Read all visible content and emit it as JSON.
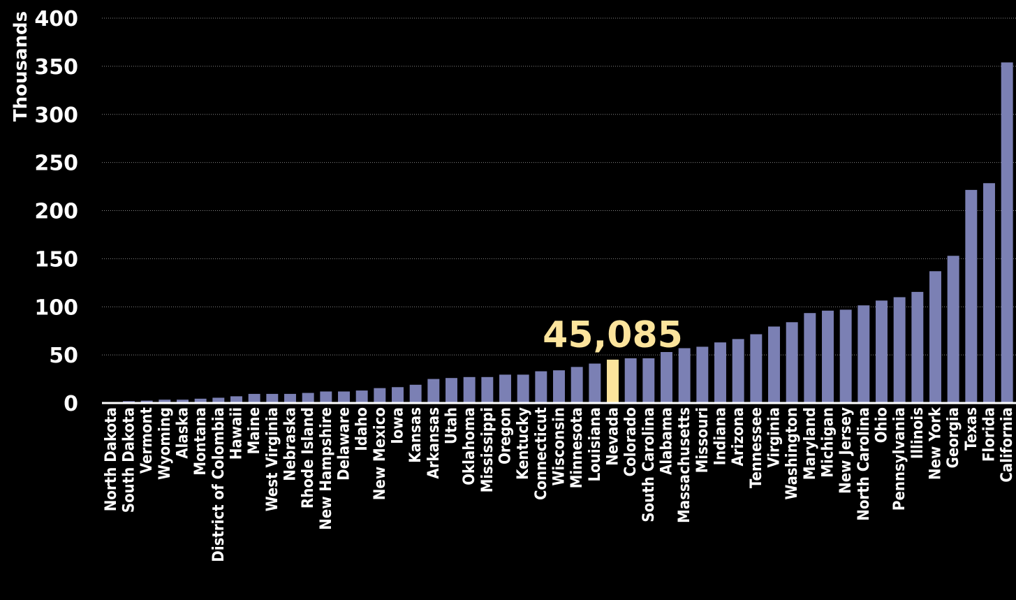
{
  "colors": {
    "background": "#000000",
    "bar": "#7b80b4",
    "highlight": "#fce49c",
    "text": "#ffffff",
    "grid": "#888888"
  },
  "chart_data": {
    "type": "bar",
    "ylabel": "Thousands",
    "ylim": [
      0,
      400
    ],
    "yticks": [
      0,
      50,
      100,
      150,
      200,
      250,
      300,
      350,
      400
    ],
    "grid": "horizontal dotted",
    "highlight": {
      "category": "Nevada",
      "value": 45085,
      "label": "45,085"
    },
    "categories": [
      "North Dakota",
      "South Dakota",
      "Vermont",
      "Wyoming",
      "Alaska",
      "Montana",
      "District of Colombia",
      "Hawaii",
      "Maine",
      "West Virginia",
      "Nebraska",
      "Rhode Island",
      "New Hampshire",
      "Delaware",
      "Idaho",
      "New Mexico",
      "Iowa",
      "Kansas",
      "Arkansas",
      "Utah",
      "Oklahoma",
      "Mississippi",
      "Oregon",
      "Kentucky",
      "Connecticut",
      "Wisconsin",
      "Minnesota",
      "Louisiana",
      "Nevada",
      "Colorado",
      "South Carolina",
      "Alabama",
      "Massachusetts",
      "Missouri",
      "Indiana",
      "Arizona",
      "Tennessee",
      "Virginia",
      "Washington",
      "Maryland",
      "Michigan",
      "New Jersey",
      "North Carolina",
      "Ohio",
      "Pennsylvania",
      "Illinois",
      "New York",
      "Georgia",
      "Texas",
      "Florida",
      "California"
    ],
    "values": [
      1,
      2,
      2.5,
      3.5,
      3.5,
      4.5,
      5.5,
      7,
      9.5,
      9.5,
      9.5,
      10.5,
      12,
      12,
      13,
      15.5,
      16.5,
      19,
      25,
      26,
      27,
      27,
      29.5,
      29.5,
      33,
      34,
      37.5,
      41,
      45.085,
      46.5,
      46.5,
      53,
      57,
      58.5,
      63,
      66.5,
      71.5,
      79.5,
      84,
      93.5,
      96,
      97,
      101.5,
      106.5,
      110,
      115.5,
      137,
      153,
      221.5,
      228.5,
      354
    ]
  }
}
